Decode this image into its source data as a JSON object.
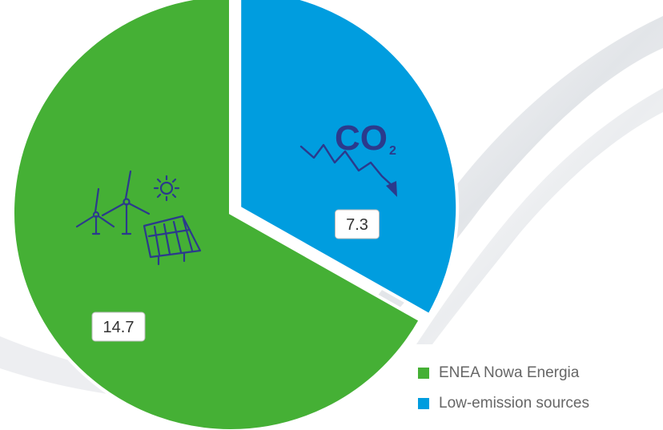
{
  "chart_data": {
    "type": "pie",
    "series": [
      {
        "name": "ENEA Nowa Energia",
        "value": 14.7,
        "label": "14.7",
        "color": "#45b035",
        "icon": "renewables-icon"
      },
      {
        "name": "Low-emission sources",
        "value": 7.3,
        "label": "7.3",
        "color": "#009ddf",
        "icon": "co2-reduction-icon"
      }
    ],
    "legend_position": "bottom-right",
    "icons": {
      "co2_text": "CO",
      "co2_sub": "2"
    },
    "colors": {
      "icon": "#2b3a8c",
      "label_border": "#bbbbbb"
    }
  }
}
